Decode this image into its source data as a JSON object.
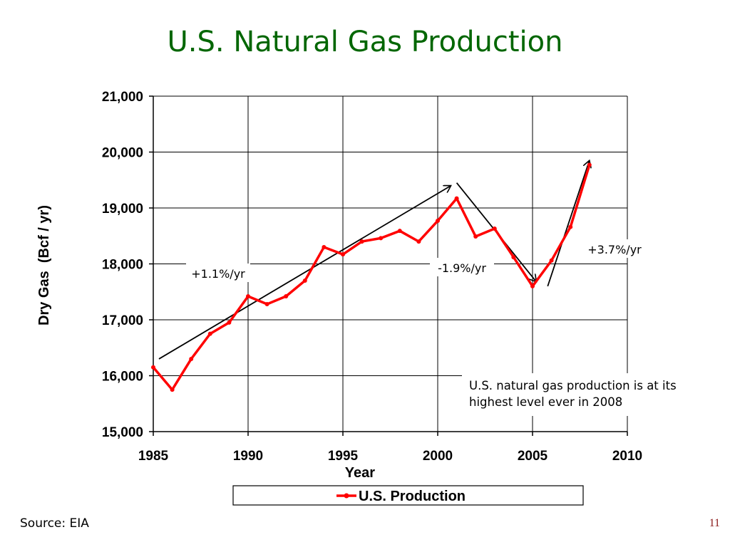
{
  "slide": {
    "title": "U.S. Natural Gas Production",
    "source": "Source: EIA",
    "page_number": "11"
  },
  "chart_data": {
    "type": "line",
    "xlabel": "Year",
    "ylabel": "Dry Gas  (Bcf / yr)",
    "xlim": [
      1985,
      2010
    ],
    "ylim": [
      15000,
      21000
    ],
    "x_ticks": [
      "1985",
      "1990",
      "1995",
      "2000",
      "2005",
      "2010"
    ],
    "y_ticks": [
      "15,000",
      "16,000",
      "17,000",
      "18,000",
      "19,000",
      "20,000",
      "21,000"
    ],
    "x_tick_values": [
      1985,
      1990,
      1995,
      2000,
      2005,
      2010
    ],
    "y_tick_values": [
      15000,
      16000,
      17000,
      18000,
      19000,
      20000,
      21000
    ],
    "grid": true,
    "legend_position": "bottom",
    "series": [
      {
        "name": "U.S. Production",
        "color": "#ff0000",
        "x": [
          1985,
          1986,
          1987,
          1988,
          1989,
          1990,
          1991,
          1992,
          1993,
          1994,
          1995,
          1996,
          1997,
          1998,
          1999,
          2000,
          2001,
          2002,
          2003,
          2004,
          2005,
          2006,
          2007,
          2008
        ],
        "y": [
          16150,
          15750,
          16300,
          16750,
          16950,
          17420,
          17280,
          17420,
          17700,
          18300,
          18170,
          18400,
          18460,
          18590,
          18400,
          18770,
          19170,
          18490,
          18630,
          18120,
          17600,
          18060,
          18660,
          19770
        ]
      }
    ],
    "trend_arrows": [
      {
        "label": "+1.1%/yr",
        "from": [
          1985.3,
          16300
        ],
        "to": [
          2000.7,
          19400
        ]
      },
      {
        "label": "-1.9%/yr",
        "from": [
          2001.0,
          19450
        ],
        "to": [
          2005.2,
          17680
        ]
      },
      {
        "label": "+3.7%/yr",
        "from": [
          2005.8,
          17600
        ],
        "to": [
          2008.0,
          19850
        ]
      }
    ],
    "annotations": [
      {
        "text": "U.S. natural gas production is at its highest level ever in 2008"
      }
    ]
  }
}
